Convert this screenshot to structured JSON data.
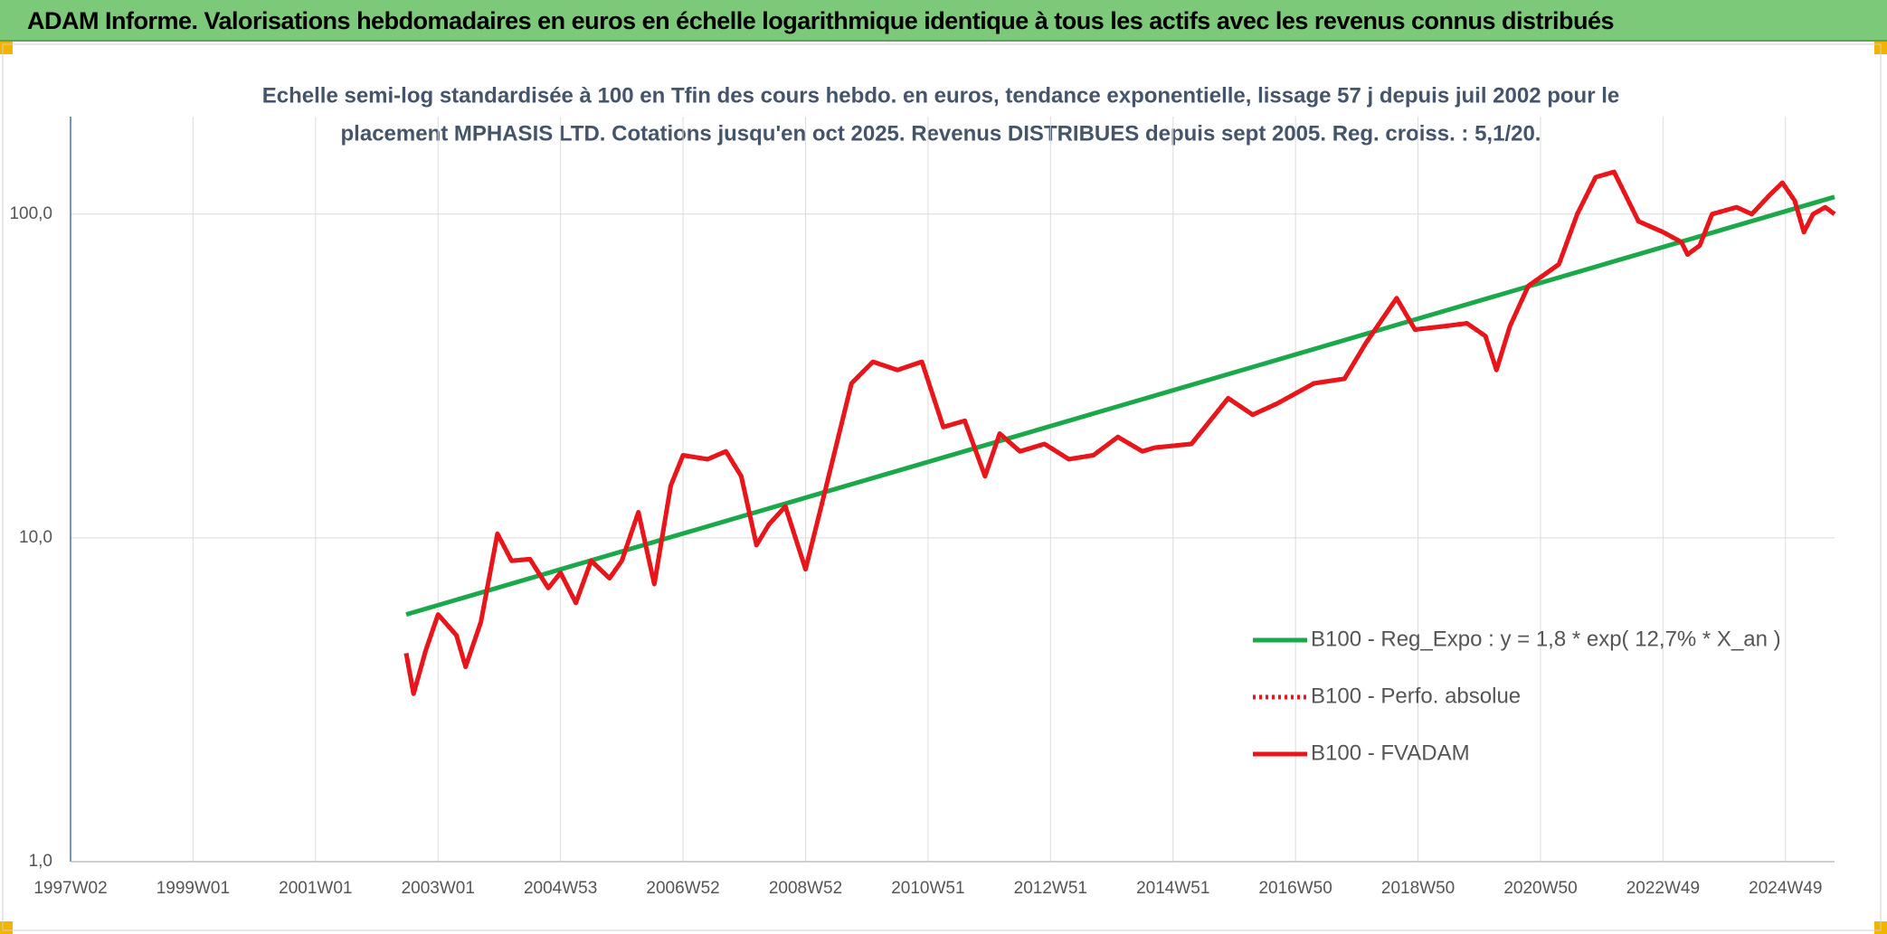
{
  "header": {
    "title": "ADAM Informe. Valorisations hebdomadaires en euros en échelle logarithmique identique à tous les actifs avec les revenus connus distribués"
  },
  "chart_data": {
    "type": "line",
    "subtitle": [
      "Echelle semi-log standardisée à 100 en Tfin des cours hebdo. en euros, tendance exponentielle, lissage 57 j depuis juil 2002 pour le",
      "placement MPHASIS LTD. Cotations jusqu'en oct 2025. Revenus DISTRIBUES depuis sept 2005. Reg. croiss. : 5,1/20."
    ],
    "log_scale": true,
    "grid": true,
    "legend": "lower right",
    "xlim": [
      1997,
      2025.8
    ],
    "ylim": [
      1,
      200
    ],
    "yticks": [
      {
        "value": 1,
        "label": "1,0"
      },
      {
        "value": 10,
        "label": "10,0"
      },
      {
        "value": 100,
        "label": "100,0"
      }
    ],
    "xticks": [
      {
        "value": 1997,
        "label": "1997W02"
      },
      {
        "value": 1999,
        "label": "1999W01"
      },
      {
        "value": 2001,
        "label": "2001W01"
      },
      {
        "value": 2003,
        "label": "2003W01"
      },
      {
        "value": 2005,
        "label": "2004W53"
      },
      {
        "value": 2007,
        "label": "2006W52"
      },
      {
        "value": 2009,
        "label": "2008W52"
      },
      {
        "value": 2011,
        "label": "2010W51"
      },
      {
        "value": 2013,
        "label": "2012W51"
      },
      {
        "value": 2015,
        "label": "2014W51"
      },
      {
        "value": 2017,
        "label": "2016W50"
      },
      {
        "value": 2019,
        "label": "2018W50"
      },
      {
        "value": 2021,
        "label": "2020W50"
      },
      {
        "value": 2023,
        "label": "2022W49"
      },
      {
        "value": 2025,
        "label": "2024W49"
      }
    ],
    "series": [
      {
        "name": "B100 - Reg_Expo : y = 1,8 * exp( 12,7% *  X_an )",
        "color": "#1aa84a",
        "style": "solid",
        "x": [
          2002.48,
          2025.8
        ],
        "values": [
          5.8,
          113
        ]
      },
      {
        "name": "B100 - Perfo. absolue",
        "color": "#e8151b",
        "style": "dotted",
        "x": [
          2002.48,
          2002.6,
          2002.8,
          2003.0,
          2003.3,
          2003.45,
          2003.7,
          2003.97,
          2004.2,
          2004.5,
          2004.8,
          2005.0,
          2005.25,
          2005.5,
          2005.8,
          2006.0,
          2006.27,
          2006.53,
          2006.8,
          2007.0,
          2007.4,
          2007.7,
          2007.95,
          2008.2,
          2008.4,
          2008.67,
          2009.0,
          2009.3,
          2009.75,
          2010.1,
          2010.5,
          2010.9,
          2011.25,
          2011.6,
          2011.93,
          2012.17,
          2012.5,
          2012.9,
          2013.3,
          2013.7,
          2014.1,
          2014.5,
          2014.7,
          2015.3,
          2015.9,
          2016.3,
          2016.7,
          2017.3,
          2017.8,
          2018.15,
          2018.65,
          2018.95,
          2019.4,
          2019.8,
          2020.1,
          2020.28,
          2020.5,
          2020.8,
          2021.3,
          2021.6,
          2021.9,
          2022.2,
          2022.6,
          2023.0,
          2023.3,
          2023.4,
          2023.6,
          2023.8,
          2024.2,
          2024.45,
          2024.75,
          2024.95,
          2025.15,
          2025.3,
          2025.45,
          2025.65,
          2025.8
        ],
        "values": [
          4.4,
          3.3,
          4.5,
          5.8,
          5.0,
          4.0,
          5.5,
          10.3,
          8.5,
          8.6,
          7.0,
          7.8,
          6.3,
          8.5,
          7.5,
          8.5,
          12.0,
          7.2,
          14.5,
          18.0,
          17.5,
          18.5,
          15.5,
          9.5,
          11.0,
          12.5,
          8.0,
          13.5,
          30.0,
          35.0,
          33.0,
          35.0,
          22.0,
          23.0,
          15.5,
          21.0,
          18.5,
          19.5,
          17.5,
          18.0,
          20.5,
          18.5,
          19.0,
          19.5,
          27.0,
          24.0,
          26.0,
          30.0,
          31.0,
          40.0,
          55.0,
          44.0,
          45.0,
          46.0,
          42.0,
          33.0,
          45.0,
          60.0,
          70.0,
          100.0,
          130.0,
          135.0,
          95.0,
          88.0,
          82.0,
          75.0,
          80.0,
          100.0,
          105.0,
          100.0,
          115.0,
          125.0,
          110.0,
          88.0,
          100.0,
          105.0,
          100.0
        ]
      },
      {
        "name": "B100 - FVADAM",
        "color": "#e8151b",
        "style": "solid",
        "x": [
          2002.48,
          2002.6,
          2002.8,
          2003.0,
          2003.3,
          2003.45,
          2003.7,
          2003.97,
          2004.2,
          2004.5,
          2004.8,
          2005.0,
          2005.25,
          2005.5,
          2005.8,
          2006.0,
          2006.27,
          2006.53,
          2006.8,
          2007.0,
          2007.4,
          2007.7,
          2007.95,
          2008.2,
          2008.4,
          2008.67,
          2009.0,
          2009.3,
          2009.75,
          2010.1,
          2010.5,
          2010.9,
          2011.25,
          2011.6,
          2011.93,
          2012.17,
          2012.5,
          2012.9,
          2013.3,
          2013.7,
          2014.1,
          2014.5,
          2014.7,
          2015.3,
          2015.9,
          2016.3,
          2016.7,
          2017.3,
          2017.8,
          2018.15,
          2018.65,
          2018.95,
          2019.4,
          2019.8,
          2020.1,
          2020.28,
          2020.5,
          2020.8,
          2021.3,
          2021.6,
          2021.9,
          2022.2,
          2022.6,
          2023.0,
          2023.3,
          2023.4,
          2023.6,
          2023.8,
          2024.2,
          2024.45,
          2024.75,
          2024.95,
          2025.15,
          2025.3,
          2025.45,
          2025.65,
          2025.8
        ],
        "values": [
          4.4,
          3.3,
          4.5,
          5.8,
          5.0,
          4.0,
          5.5,
          10.3,
          8.5,
          8.6,
          7.0,
          7.8,
          6.3,
          8.5,
          7.5,
          8.5,
          12.0,
          7.2,
          14.5,
          18.0,
          17.5,
          18.5,
          15.5,
          9.5,
          11.0,
          12.5,
          8.0,
          13.5,
          30.0,
          35.0,
          33.0,
          35.0,
          22.0,
          23.0,
          15.5,
          21.0,
          18.5,
          19.5,
          17.5,
          18.0,
          20.5,
          18.5,
          19.0,
          19.5,
          27.0,
          24.0,
          26.0,
          30.0,
          31.0,
          40.0,
          55.0,
          44.0,
          45.0,
          46.0,
          42.0,
          33.0,
          45.0,
          60.0,
          70.0,
          100.0,
          130.0,
          135.0,
          95.0,
          88.0,
          82.0,
          75.0,
          80.0,
          100.0,
          105.0,
          100.0,
          115.0,
          125.0,
          110.0,
          88.0,
          100.0,
          105.0,
          100.0
        ]
      }
    ]
  }
}
